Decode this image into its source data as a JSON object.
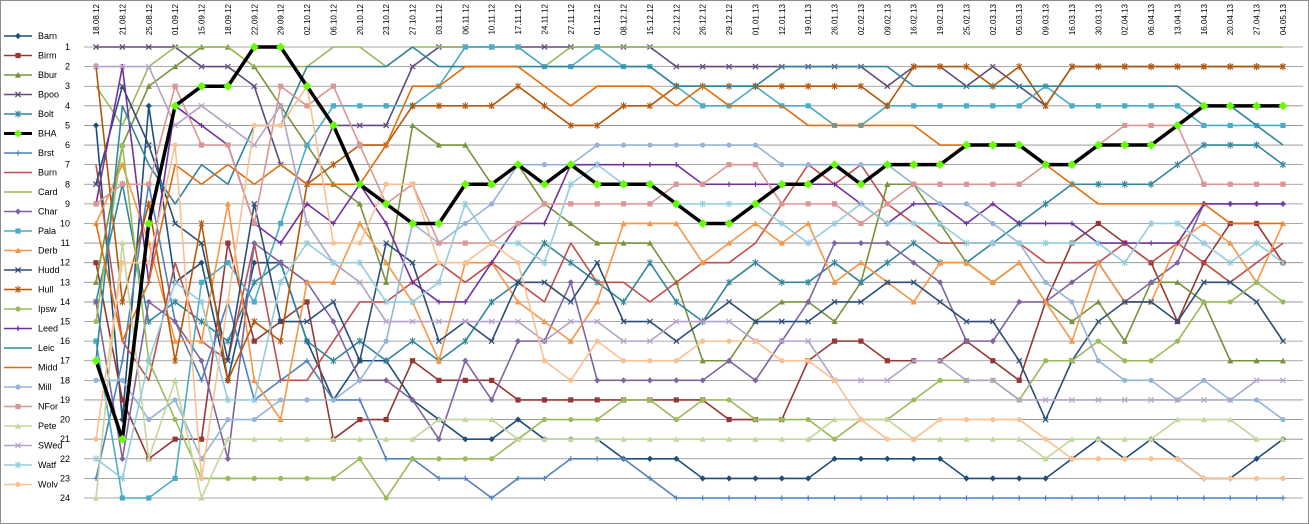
{
  "chart_data": {
    "type": "line",
    "title": "",
    "xlabel": "",
    "ylabel": "",
    "ylim": [
      1,
      24
    ],
    "y_inverted": true,
    "y_ticks": [
      "1",
      "2",
      "3",
      "4",
      "5",
      "6",
      "7",
      "8",
      "9",
      "10",
      "11",
      "12",
      "13",
      "14",
      "15",
      "16",
      "17",
      "18",
      "19",
      "20",
      "21",
      "22",
      "23",
      "24"
    ],
    "grid": "horizontal",
    "legend_position": "left",
    "categories": [
      "18.08.12",
      "21.08.12",
      "25.08.12",
      "01.09.12",
      "15.09.12",
      "18.09.12",
      "22.09.12",
      "29.09.12",
      "02.10.12",
      "06.10.12",
      "20.10.12",
      "23.10.12",
      "27.10.12",
      "03.11.12",
      "06.11.12",
      "10.11.12",
      "17.11.12",
      "24.11.12",
      "27.11.12",
      "01.12.12",
      "08.12.12",
      "15.12.12",
      "22.12.12",
      "26.12.12",
      "29.12.12",
      "01.01.13",
      "12.01.13",
      "19.01.13",
      "26.01.13",
      "02.02.13",
      "09.02.13",
      "16.02.13",
      "19.02.13",
      "25.02.13",
      "02.03.13",
      "05.03.13",
      "09.03.13",
      "16.03.13",
      "30.03.13",
      "02.04.13",
      "06.04.13",
      "13.04.13",
      "16.04.13",
      "20.04.13",
      "27.04.13",
      "04.05.13"
    ],
    "series": [
      {
        "name": "Barn",
        "color": "#1f4e79",
        "marker": "diamond",
        "values": [
          5,
          20,
          4,
          13,
          12,
          18,
          12,
          12,
          16,
          19,
          17,
          17,
          19,
          20,
          21,
          21,
          20,
          21,
          21,
          21,
          22,
          22,
          22,
          23,
          23,
          23,
          23,
          23,
          22,
          22,
          22,
          22,
          22,
          23,
          23,
          23,
          23,
          22,
          21,
          22,
          21,
          22,
          23,
          23,
          22,
          21
        ]
      },
      {
        "name": "Birm",
        "color": "#953735",
        "marker": "square",
        "values": [
          12,
          19,
          22,
          21,
          21,
          11,
          16,
          15,
          14,
          21,
          20,
          20,
          17,
          18,
          18,
          18,
          19,
          19,
          19,
          19,
          19,
          19,
          19,
          19,
          20,
          20,
          20,
          17,
          16,
          16,
          17,
          17,
          17,
          16,
          17,
          18,
          14,
          11,
          10,
          11,
          12,
          15,
          12,
          10,
          10,
          12
        ]
      },
      {
        "name": "Bbur",
        "color": "#77933c",
        "marker": "triangle",
        "values": [
          13,
          6,
          3,
          2,
          1,
          1,
          2,
          4,
          6,
          8,
          9,
          13,
          5,
          6,
          6,
          8,
          7,
          9,
          10,
          11,
          11,
          11,
          13,
          17,
          17,
          15,
          14,
          14,
          15,
          13,
          8,
          8,
          10,
          12,
          13,
          12,
          14,
          15,
          14,
          16,
          13,
          13,
          14,
          17,
          17,
          17
        ]
      },
      {
        "name": "Bpoo",
        "color": "#604a7b",
        "marker": "x",
        "values": [
          1,
          1,
          1,
          1,
          2,
          2,
          3,
          7,
          8,
          5,
          5,
          5,
          2,
          1,
          1,
          1,
          1,
          1,
          1,
          1,
          1,
          1,
          2,
          2,
          2,
          2,
          2,
          2,
          2,
          2,
          3,
          2,
          2,
          3,
          2,
          3,
          4,
          2,
          2,
          2,
          2,
          2,
          2,
          2,
          2,
          2
        ]
      },
      {
        "name": "Bolt",
        "color": "#31859c",
        "marker": "star",
        "values": [
          14,
          8,
          15,
          14,
          15,
          16,
          13,
          12,
          16,
          17,
          16,
          17,
          16,
          17,
          16,
          14,
          13,
          11,
          12,
          13,
          14,
          12,
          14,
          15,
          13,
          12,
          13,
          13,
          12,
          13,
          12,
          11,
          12,
          12,
          11,
          10,
          9,
          8,
          8,
          8,
          8,
          7,
          6,
          6,
          6,
          7
        ]
      },
      {
        "name": "BHA",
        "color": "#000000",
        "marker": "diamond",
        "accent": "#66ff00",
        "values": [
          17,
          21,
          10,
          4,
          3,
          3,
          1,
          1,
          3,
          5,
          8,
          9,
          10,
          10,
          8,
          8,
          7,
          8,
          7,
          8,
          8,
          8,
          9,
          10,
          10,
          9,
          8,
          8,
          7,
          8,
          7,
          7,
          7,
          6,
          6,
          6,
          7,
          7,
          6,
          6,
          6,
          5,
          4,
          4,
          4,
          4
        ]
      },
      {
        "name": "Brst",
        "color": "#4f81bd",
        "marker": "plus",
        "values": [
          23,
          17,
          8,
          15,
          18,
          14,
          19,
          18,
          17,
          19,
          19,
          22,
          22,
          23,
          23,
          24,
          23,
          23,
          22,
          22,
          22,
          23,
          24,
          24,
          24,
          24,
          24,
          24,
          24,
          24,
          24,
          24,
          24,
          24,
          24,
          24,
          24,
          24,
          24,
          24,
          24,
          24,
          24,
          24,
          24,
          24
        ]
      },
      {
        "name": "Burn",
        "color": "#c0504d",
        "marker": "line",
        "values": [
          7,
          16,
          18,
          12,
          16,
          17,
          11,
          18,
          18,
          16,
          14,
          14,
          13,
          12,
          13,
          12,
          13,
          14,
          11,
          13,
          13,
          14,
          13,
          12,
          12,
          11,
          9,
          7,
          8,
          7,
          9,
          10,
          11,
          11,
          11,
          11,
          12,
          12,
          12,
          11,
          12,
          11,
          12,
          13,
          12,
          11
        ]
      },
      {
        "name": "Card",
        "color": "#9bbb59",
        "marker": "line",
        "values": [
          3,
          5,
          2,
          1,
          1,
          1,
          2,
          2,
          2,
          1,
          1,
          2,
          1,
          1,
          1,
          1,
          1,
          2,
          1,
          1,
          1,
          1,
          1,
          1,
          1,
          1,
          1,
          1,
          1,
          1,
          1,
          1,
          1,
          1,
          1,
          1,
          1,
          1,
          1,
          1,
          1,
          1,
          1,
          1,
          1,
          1
        ]
      },
      {
        "name": "Char",
        "color": "#8064a2",
        "marker": "diamond",
        "values": [
          14,
          22,
          14,
          15,
          17,
          22,
          11,
          12,
          13,
          15,
          18,
          18,
          19,
          21,
          17,
          19,
          16,
          16,
          13,
          18,
          18,
          18,
          18,
          18,
          17,
          18,
          16,
          14,
          11,
          11,
          11,
          12,
          13,
          16,
          16,
          14,
          14,
          13,
          12,
          14,
          13,
          12,
          9,
          9,
          9,
          9
        ]
      },
      {
        "name": "Pala",
        "color": "#4bacc6",
        "marker": "square",
        "values": [
          16,
          24,
          24,
          23,
          13,
          12,
          14,
          10,
          6,
          4,
          4,
          4,
          4,
          3,
          1,
          1,
          1,
          2,
          2,
          1,
          2,
          2,
          3,
          4,
          4,
          3,
          4,
          4,
          5,
          5,
          4,
          4,
          4,
          4,
          4,
          4,
          3,
          4,
          4,
          4,
          4,
          4,
          5,
          5,
          5,
          5
        ]
      },
      {
        "name": "Derb",
        "color": "#f79646",
        "marker": "triangle",
        "values": [
          10,
          7,
          11,
          16,
          16,
          9,
          18,
          20,
          13,
          13,
          10,
          12,
          14,
          17,
          12,
          12,
          14,
          15,
          16,
          14,
          10,
          10,
          10,
          12,
          11,
          10,
          11,
          10,
          13,
          12,
          13,
          14,
          12,
          12,
          13,
          12,
          14,
          16,
          12,
          14,
          14,
          11,
          10,
          11,
          13,
          10
        ]
      },
      {
        "name": "Hudd",
        "color": "#2c4d75",
        "marker": "x",
        "values": [
          8,
          3,
          6,
          10,
          11,
          17,
          9,
          15,
          15,
          14,
          17,
          11,
          12,
          16,
          15,
          16,
          13,
          13,
          14,
          12,
          15,
          15,
          16,
          15,
          14,
          15,
          15,
          15,
          14,
          14,
          13,
          13,
          14,
          15,
          15,
          17,
          20,
          17,
          15,
          14,
          14,
          15,
          13,
          13,
          14,
          16
        ]
      },
      {
        "name": "Hull",
        "color": "#b65708",
        "marker": "star",
        "values": [
          2,
          14,
          9,
          17,
          10,
          18,
          15,
          16,
          8,
          7,
          6,
          6,
          4,
          4,
          4,
          4,
          3,
          4,
          5,
          5,
          4,
          4,
          3,
          3,
          3,
          3,
          3,
          3,
          3,
          3,
          4,
          2,
          2,
          2,
          3,
          2,
          4,
          2,
          2,
          2,
          2,
          2,
          2,
          2,
          2,
          2
        ]
      },
      {
        "name": "Ipsw",
        "color": "#9bbb59",
        "marker": "circle",
        "values": [
          15,
          6,
          17,
          20,
          23,
          23,
          23,
          23,
          23,
          23,
          22,
          24,
          22,
          22,
          22,
          22,
          21,
          20,
          20,
          20,
          19,
          19,
          20,
          19,
          19,
          20,
          20,
          20,
          21,
          20,
          20,
          19,
          18,
          18,
          18,
          19,
          17,
          17,
          16,
          17,
          17,
          16,
          14,
          14,
          13,
          14
        ]
      },
      {
        "name": "Leed",
        "color": "#7030a0",
        "marker": "plus",
        "values": [
          9,
          2,
          13,
          4,
          5,
          6,
          10,
          11,
          9,
          10,
          8,
          10,
          13,
          14,
          14,
          12,
          10,
          10,
          7,
          7,
          7,
          7,
          7,
          8,
          8,
          8,
          8,
          8,
          8,
          9,
          10,
          9,
          9,
          10,
          9,
          10,
          10,
          10,
          11,
          11,
          11,
          11,
          9,
          9,
          9,
          9
        ]
      },
      {
        "name": "Leic",
        "color": "#31859c",
        "marker": "line",
        "values": [
          17,
          4,
          7,
          9,
          7,
          8,
          5,
          5,
          2,
          2,
          2,
          2,
          1,
          2,
          2,
          2,
          2,
          2,
          2,
          2,
          2,
          2,
          3,
          3,
          3,
          3,
          2,
          2,
          2,
          2,
          2,
          3,
          3,
          3,
          3,
          3,
          3,
          3,
          3,
          3,
          3,
          3,
          4,
          4,
          5,
          6
        ]
      },
      {
        "name": "Midd",
        "color": "#e46c0a",
        "marker": "line",
        "values": [
          10,
          16,
          13,
          7,
          8,
          7,
          8,
          7,
          8,
          8,
          8,
          6,
          3,
          3,
          2,
          2,
          2,
          3,
          4,
          3,
          3,
          3,
          4,
          3,
          4,
          4,
          4,
          5,
          5,
          5,
          5,
          5,
          6,
          6,
          6,
          6,
          7,
          8,
          9,
          9,
          9,
          9,
          9,
          10,
          10,
          10
        ]
      },
      {
        "name": "Mill",
        "color": "#95b3d7",
        "marker": "circle",
        "values": [
          18,
          18,
          20,
          19,
          22,
          20,
          20,
          19,
          19,
          19,
          18,
          16,
          10,
          11,
          10,
          9,
          7,
          7,
          7,
          6,
          6,
          6,
          6,
          6,
          6,
          6,
          7,
          7,
          7,
          7,
          7,
          8,
          9,
          9,
          10,
          11,
          13,
          14,
          17,
          18,
          18,
          19,
          18,
          19,
          19,
          20
        ]
      },
      {
        "name": "NFor",
        "color": "#d99694",
        "marker": "square",
        "values": [
          9,
          8,
          8,
          3,
          6,
          6,
          10,
          3,
          4,
          3,
          6,
          9,
          8,
          11,
          11,
          11,
          10,
          9,
          9,
          9,
          9,
          9,
          8,
          8,
          7,
          7,
          9,
          9,
          9,
          10,
          9,
          8,
          8,
          8,
          8,
          8,
          7,
          7,
          6,
          5,
          5,
          5,
          8,
          8,
          8,
          8
        ]
      },
      {
        "name": "Pete",
        "color": "#c3d69b",
        "marker": "triangle",
        "values": [
          24,
          11,
          22,
          18,
          24,
          21,
          21,
          21,
          21,
          21,
          21,
          21,
          21,
          20,
          20,
          20,
          21,
          21,
          21,
          21,
          21,
          21,
          21,
          21,
          21,
          21,
          21,
          21,
          20,
          20,
          20,
          21,
          21,
          21,
          21,
          21,
          22,
          21,
          21,
          21,
          21,
          20,
          20,
          20,
          21,
          21
        ]
      },
      {
        "name": "SWed",
        "color": "#b3a2c7",
        "marker": "x",
        "values": [
          2,
          2,
          2,
          5,
          4,
          5,
          6,
          4,
          10,
          12,
          13,
          15,
          15,
          15,
          15,
          15,
          15,
          16,
          15,
          15,
          16,
          16,
          15,
          15,
          15,
          16,
          16,
          16,
          18,
          18,
          18,
          17,
          17,
          18,
          18,
          19,
          19,
          19,
          19,
          19,
          19,
          19,
          19,
          19,
          18,
          18
        ]
      },
      {
        "name": "Watf",
        "color": "#93cddd",
        "marker": "star",
        "values": [
          22,
          23,
          17,
          13,
          14,
          19,
          19,
          13,
          11,
          12,
          12,
          14,
          14,
          13,
          9,
          11,
          11,
          12,
          8,
          7,
          8,
          8,
          9,
          9,
          9,
          9,
          10,
          11,
          10,
          9,
          10,
          10,
          10,
          11,
          11,
          11,
          11,
          11,
          11,
          12,
          10,
          10,
          11,
          12,
          11,
          12
        ]
      },
      {
        "name": "Wolv",
        "color": "#fac090",
        "marker": "circle",
        "values": [
          21,
          12,
          12,
          6,
          23,
          14,
          5,
          5,
          3,
          11,
          11,
          8,
          8,
          12,
          12,
          11,
          12,
          17,
          18,
          16,
          17,
          17,
          17,
          16,
          16,
          16,
          17,
          17,
          18,
          20,
          21,
          21,
          20,
          20,
          20,
          20,
          21,
          22,
          22,
          22,
          22,
          22,
          23,
          23,
          23,
          23
        ]
      }
    ]
  }
}
